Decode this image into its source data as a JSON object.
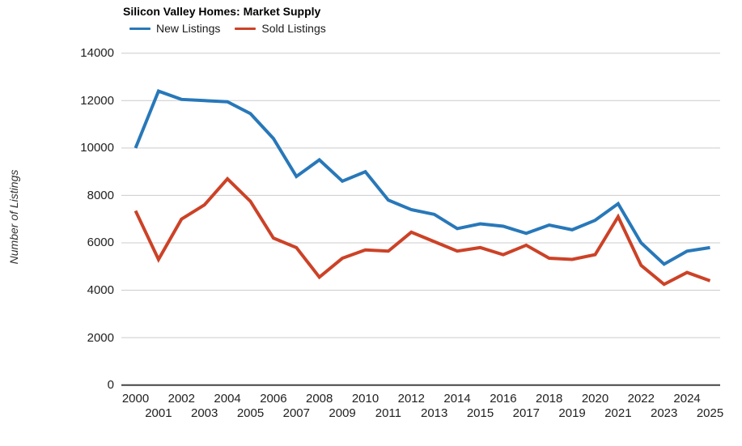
{
  "chart": {
    "title": "Silicon Valley Homes: Market Supply",
    "ylabel": "Number of Listings"
  },
  "chart_data": {
    "type": "line",
    "title": "Silicon Valley Homes: Market Supply",
    "xlabel": "",
    "ylabel": "Number of Listings",
    "ylim": [
      0,
      14000
    ],
    "ytick_step": 2000,
    "ytick_labels": [
      "0",
      "2000",
      "4000",
      "6000",
      "8000",
      "10000",
      "12000",
      "14000"
    ],
    "grid": true,
    "legend_position": "top-left",
    "categories": [
      2000,
      2001,
      2002,
      2003,
      2004,
      2005,
      2006,
      2007,
      2008,
      2009,
      2010,
      2011,
      2012,
      2013,
      2014,
      2015,
      2016,
      2017,
      2018,
      2019,
      2020,
      2021,
      2022,
      2023,
      2024,
      2025
    ],
    "series": [
      {
        "name": "New Listings",
        "color": "#2878b9",
        "values": [
          10000,
          12400,
          12050,
          12000,
          11950,
          11450,
          10400,
          8800,
          9500,
          8600,
          9000,
          7800,
          7400,
          7200,
          6600,
          6800,
          6700,
          6400,
          6750,
          6550,
          6950,
          7650,
          6000,
          5100,
          5650,
          5800
        ]
      },
      {
        "name": "Sold Listings",
        "color": "#cc4227",
        "values": [
          7350,
          5300,
          7000,
          7600,
          8700,
          7750,
          6200,
          5800,
          4550,
          5350,
          5700,
          5650,
          6450,
          6050,
          5650,
          5800,
          5500,
          5900,
          5350,
          5300,
          5500,
          7100,
          5050,
          4250,
          4750,
          4400
        ]
      }
    ],
    "colors": {
      "gridline": "#cccccc",
      "axis": "#444444",
      "tick_text": "#212121"
    }
  }
}
